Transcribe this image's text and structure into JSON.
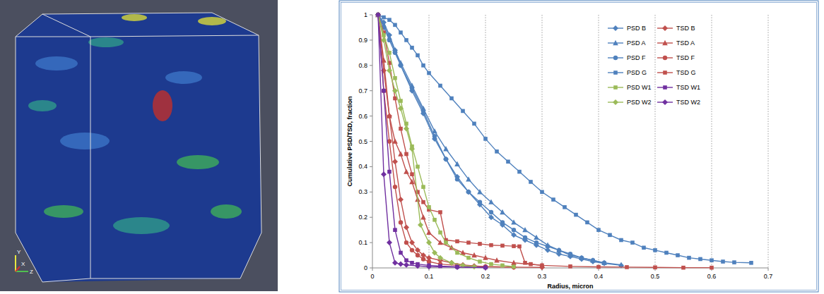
{
  "image": {
    "axis_labels": [
      "Y",
      "X",
      "Z"
    ]
  },
  "chart_data": {
    "type": "line",
    "x_label": "Radius, micron",
    "y_label": "Cumulative PSD/TSD, fraction",
    "xlim": [
      0,
      0.7
    ],
    "xticks": [
      0,
      0.1,
      0.2,
      0.3,
      0.4,
      0.5,
      0.6,
      0.7
    ],
    "ylim": [
      0,
      1
    ],
    "yticks": [
      0,
      0.1,
      0.2,
      0.3,
      0.4,
      0.5,
      0.6,
      0.7,
      0.8,
      0.9,
      1
    ],
    "grid": true,
    "legend": "upper right",
    "series": [
      {
        "name": "PSD B",
        "color": "#4f81bd",
        "marker": "diamond",
        "x": [
          0.01,
          0.02,
          0.03,
          0.04,
          0.05,
          0.07,
          0.09,
          0.11,
          0.13,
          0.15,
          0.17,
          0.19,
          0.21,
          0.23,
          0.25,
          0.27,
          0.29,
          0.31,
          0.33,
          0.35,
          0.37,
          0.39,
          0.41,
          0.44
        ],
        "values": [
          1,
          0.97,
          0.92,
          0.86,
          0.8,
          0.7,
          0.61,
          0.51,
          0.43,
          0.36,
          0.3,
          0.25,
          0.2,
          0.17,
          0.13,
          0.11,
          0.09,
          0.07,
          0.055,
          0.045,
          0.035,
          0.025,
          0.018,
          0.01
        ]
      },
      {
        "name": "TSD B",
        "color": "#c0504d",
        "marker": "diamond",
        "x": [
          0.01,
          0.02,
          0.03,
          0.04,
          0.05,
          0.06,
          0.07,
          0.08,
          0.09,
          0.1,
          0.12,
          0.14,
          0.16,
          0.18,
          0.2,
          0.25,
          0.3
        ],
        "values": [
          1,
          0.78,
          0.6,
          0.42,
          0.27,
          0.16,
          0.1,
          0.07,
          0.05,
          0.04,
          0.03,
          0.02,
          0.012,
          0.008,
          0.005,
          0.003,
          0.002
        ]
      },
      {
        "name": "PSD A",
        "color": "#4f81bd",
        "marker": "triangle",
        "x": [
          0.01,
          0.02,
          0.03,
          0.04,
          0.05,
          0.07,
          0.09,
          0.11,
          0.13,
          0.15,
          0.17,
          0.19,
          0.21,
          0.23,
          0.25,
          0.27,
          0.29,
          0.31,
          0.33,
          0.35,
          0.37,
          0.39,
          0.41,
          0.44
        ],
        "values": [
          1,
          0.96,
          0.91,
          0.86,
          0.81,
          0.72,
          0.63,
          0.54,
          0.47,
          0.41,
          0.35,
          0.3,
          0.26,
          0.22,
          0.18,
          0.15,
          0.12,
          0.09,
          0.07,
          0.05,
          0.04,
          0.03,
          0.02,
          0.012
        ]
      },
      {
        "name": "TSD A",
        "color": "#c0504d",
        "marker": "triangle",
        "x": [
          0.01,
          0.02,
          0.03,
          0.04,
          0.05,
          0.06,
          0.07,
          0.08,
          0.09,
          0.1,
          0.12,
          0.14,
          0.16,
          0.18,
          0.2,
          0.22,
          0.25,
          0.3
        ],
        "values": [
          1,
          0.82,
          0.6,
          0.5,
          0.45,
          0.38,
          0.34,
          0.27,
          0.2,
          0.14,
          0.1,
          0.08,
          0.06,
          0.05,
          0.04,
          0.03,
          0.02,
          0.01
        ]
      },
      {
        "name": "PSD F",
        "color": "#4f81bd",
        "marker": "circle",
        "x": [
          0.01,
          0.02,
          0.03,
          0.04,
          0.05,
          0.07,
          0.09,
          0.11,
          0.13,
          0.15,
          0.17,
          0.19,
          0.21,
          0.23,
          0.25,
          0.27,
          0.29,
          0.31,
          0.33,
          0.35,
          0.37,
          0.39,
          0.41
        ],
        "values": [
          1,
          0.95,
          0.9,
          0.85,
          0.8,
          0.71,
          0.62,
          0.52,
          0.43,
          0.35,
          0.3,
          0.26,
          0.22,
          0.18,
          0.15,
          0.12,
          0.1,
          0.085,
          0.07,
          0.055,
          0.04,
          0.03,
          0.02
        ]
      },
      {
        "name": "TSD F",
        "color": "#c0504d",
        "marker": "circle",
        "x": [
          0.01,
          0.02,
          0.03,
          0.04,
          0.05,
          0.06,
          0.07,
          0.08,
          0.09,
          0.1,
          0.12,
          0.15,
          0.2,
          0.25
        ],
        "values": [
          1,
          0.7,
          0.5,
          0.32,
          0.18,
          0.1,
          0.07,
          0.05,
          0.035,
          0.025,
          0.015,
          0.01,
          0.005,
          0.003
        ]
      },
      {
        "name": "PSD G",
        "color": "#4f81bd",
        "marker": "square",
        "x": [
          0.01,
          0.02,
          0.03,
          0.04,
          0.05,
          0.06,
          0.07,
          0.08,
          0.09,
          0.1,
          0.12,
          0.14,
          0.16,
          0.18,
          0.2,
          0.22,
          0.24,
          0.26,
          0.28,
          0.3,
          0.32,
          0.34,
          0.36,
          0.38,
          0.4,
          0.42,
          0.44,
          0.46,
          0.48,
          0.5,
          0.52,
          0.54,
          0.56,
          0.58,
          0.6,
          0.62,
          0.64,
          0.67
        ],
        "values": [
          1,
          0.99,
          0.98,
          0.96,
          0.93,
          0.9,
          0.87,
          0.84,
          0.8,
          0.77,
          0.72,
          0.67,
          0.62,
          0.57,
          0.51,
          0.46,
          0.42,
          0.38,
          0.34,
          0.3,
          0.27,
          0.24,
          0.21,
          0.18,
          0.15,
          0.13,
          0.11,
          0.1,
          0.08,
          0.07,
          0.06,
          0.05,
          0.04,
          0.035,
          0.03,
          0.025,
          0.022,
          0.02
        ]
      },
      {
        "name": "TSD G",
        "color": "#c0504d",
        "marker": "square",
        "x": [
          0.01,
          0.02,
          0.03,
          0.04,
          0.05,
          0.06,
          0.07,
          0.08,
          0.09,
          0.1,
          0.12,
          0.13,
          0.15,
          0.17,
          0.19,
          0.21,
          0.23,
          0.25,
          0.26,
          0.27,
          0.28,
          0.3,
          0.35,
          0.4,
          0.45,
          0.5,
          0.55,
          0.6
        ],
        "values": [
          1,
          0.93,
          0.81,
          0.67,
          0.55,
          0.45,
          0.37,
          0.3,
          0.26,
          0.23,
          0.22,
          0.11,
          0.105,
          0.1,
          0.095,
          0.09,
          0.088,
          0.086,
          0.085,
          0.02,
          0.015,
          0.01,
          0.006,
          0.004,
          0.003,
          0.002,
          0.001,
          0.001
        ]
      },
      {
        "name": "PSD W1",
        "color": "#9bbb59",
        "marker": "square",
        "x": [
          0.01,
          0.02,
          0.03,
          0.04,
          0.05,
          0.06,
          0.07,
          0.08,
          0.09,
          0.1,
          0.11,
          0.12,
          0.13,
          0.15,
          0.17,
          0.19,
          0.21,
          0.23,
          0.25
        ],
        "values": [
          1,
          0.92,
          0.85,
          0.75,
          0.66,
          0.57,
          0.48,
          0.4,
          0.32,
          0.24,
          0.19,
          0.14,
          0.1,
          0.06,
          0.04,
          0.025,
          0.015,
          0.01,
          0.005
        ]
      },
      {
        "name": "TSD W1",
        "color": "#7030a0",
        "marker": "square",
        "x": [
          0.01,
          0.02,
          0.03,
          0.04,
          0.05,
          0.06,
          0.07,
          0.08,
          0.1,
          0.12,
          0.15,
          0.2
        ],
        "values": [
          1,
          0.7,
          0.38,
          0.15,
          0.06,
          0.03,
          0.02,
          0.015,
          0.01,
          0.007,
          0.004,
          0.002
        ]
      },
      {
        "name": "PSD W2",
        "color": "#9bbb59",
        "marker": "diamond",
        "x": [
          0.01,
          0.02,
          0.03,
          0.04,
          0.05,
          0.06,
          0.07,
          0.085,
          0.1,
          0.11,
          0.12,
          0.14,
          0.16,
          0.18
        ],
        "values": [
          1,
          0.9,
          0.78,
          0.7,
          0.63,
          0.55,
          0.47,
          0.17,
          0.1,
          0.06,
          0.04,
          0.02,
          0.01,
          0.005
        ]
      },
      {
        "name": "TSD W2",
        "color": "#7030a0",
        "marker": "diamond",
        "x": [
          0.01,
          0.02,
          0.03,
          0.04,
          0.05,
          0.06,
          0.08,
          0.1,
          0.15,
          0.2
        ],
        "values": [
          1,
          0.37,
          0.1,
          0.02,
          0.015,
          0.012,
          0.008,
          0.005,
          0.003,
          0.001
        ]
      }
    ]
  }
}
